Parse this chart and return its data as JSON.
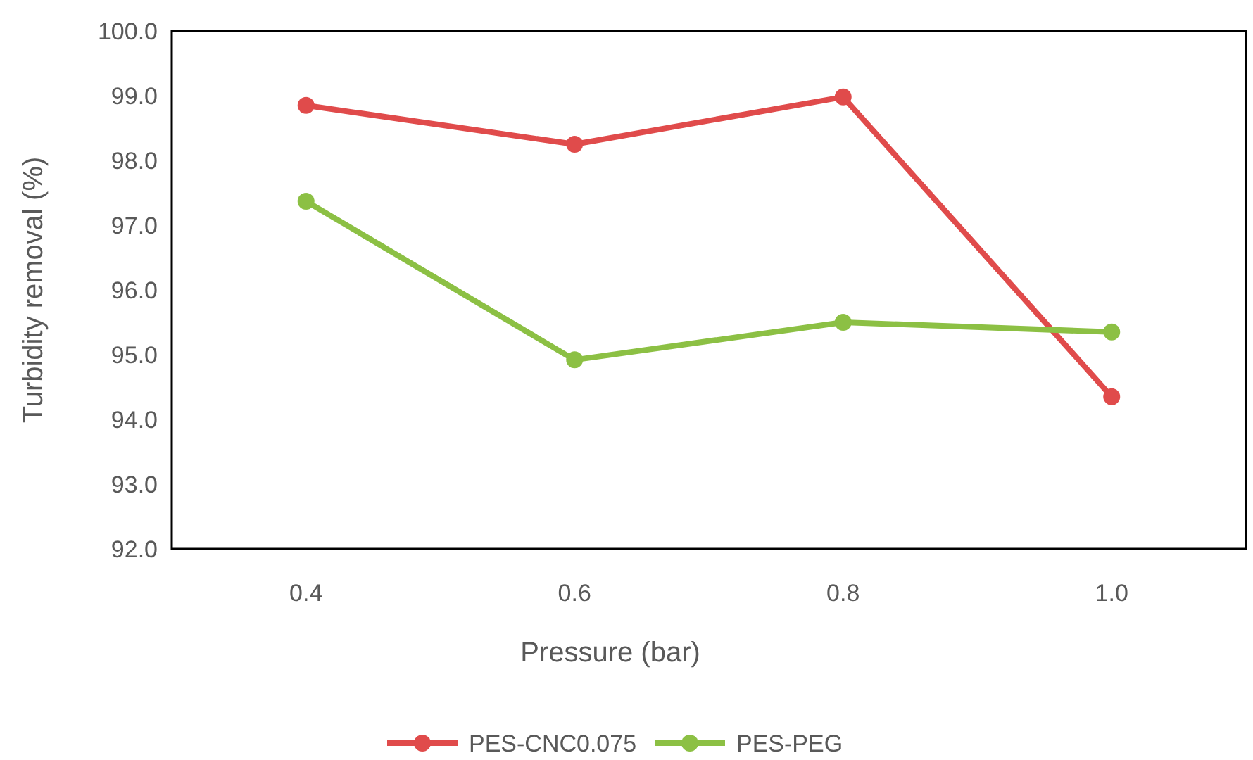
{
  "chart_data": {
    "type": "line",
    "xlabel": "Pressure (bar)",
    "ylabel": "Turbidity removal (%)",
    "categories": [
      "0.4",
      "0.6",
      "0.8",
      "1.0"
    ],
    "ylim": [
      92,
      100
    ],
    "yticks": [
      {
        "value": 92,
        "label": "92.0"
      },
      {
        "value": 93,
        "label": "93.0"
      },
      {
        "value": 94,
        "label": "94.0"
      },
      {
        "value": 95,
        "label": "95.0"
      },
      {
        "value": 96,
        "label": "96.0"
      },
      {
        "value": 97,
        "label": "97.0"
      },
      {
        "value": 98,
        "label": "98.0"
      },
      {
        "value": 99,
        "label": "99.0"
      },
      {
        "value": 100,
        "label": "100.0"
      }
    ],
    "series": [
      {
        "name": "PES-CNC0.075",
        "color": "#e04b4b",
        "values": [
          98.85,
          98.25,
          98.98,
          94.35
        ]
      },
      {
        "name": "PES-PEG",
        "color": "#8cc044",
        "values": [
          97.37,
          94.92,
          95.5,
          95.35
        ]
      }
    ],
    "marker": "circle",
    "grid": false,
    "legend": "bottom"
  }
}
